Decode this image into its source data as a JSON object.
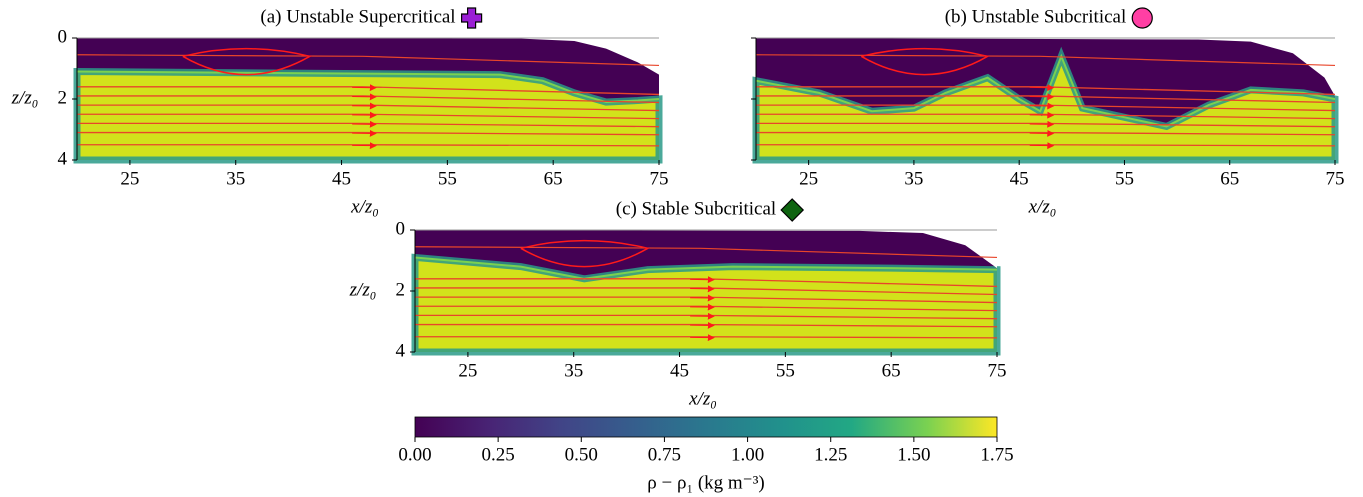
{
  "chart_data": [
    {
      "type": "field",
      "title": "(a) Unstable Supercritical",
      "marker": {
        "shape": "plus",
        "color": "#9a1fd4"
      },
      "xlabel": "x/z₀",
      "ylabel": "z/z₀",
      "xlim": [
        20,
        75
      ],
      "xticks": [
        25,
        35,
        45,
        55,
        65,
        75
      ],
      "ylim": [
        4,
        0
      ],
      "yticks": [
        0,
        2,
        4
      ],
      "ytick_labels": true
    },
    {
      "type": "field",
      "title": "(b) Unstable Subcritical",
      "marker": {
        "shape": "circle",
        "color": "#ff3fa4"
      },
      "xlabel": "x/z₀",
      "xlim": [
        20,
        75
      ],
      "xticks": [
        25,
        35,
        45,
        55,
        65,
        75
      ],
      "ylim": [
        4,
        0
      ],
      "yticks": [
        0,
        2,
        4
      ],
      "ytick_labels": false
    },
    {
      "type": "field",
      "title": "(c) Stable Subcritical",
      "marker": {
        "shape": "diamond",
        "color": "#0e6410"
      },
      "xlabel": "x/z₀",
      "ylabel": "z/z₀",
      "xlim": [
        20,
        75
      ],
      "xticks": [
        25,
        35,
        45,
        55,
        65,
        75
      ],
      "ylim": [
        4,
        0
      ],
      "yticks": [
        0,
        2,
        4
      ],
      "ytick_labels": true
    },
    {
      "type": "colorbar",
      "label": "ρ − ρ₁ (kg m⁻³)",
      "colormap": "viridis",
      "xlim": [
        0,
        1.75
      ],
      "xticks": [
        {
          "value": 0,
          "label": "0.00"
        },
        {
          "value": 0.25,
          "label": "0.25"
        },
        {
          "value": 0.5,
          "label": "0.50"
        },
        {
          "value": 0.75,
          "label": "0.75"
        },
        {
          "value": 1,
          "label": "1.00"
        },
        {
          "value": 1.25,
          "label": "1.25"
        },
        {
          "value": 1.5,
          "label": "1.50"
        },
        {
          "value": 1.75,
          "label": "1.75"
        }
      ]
    }
  ]
}
